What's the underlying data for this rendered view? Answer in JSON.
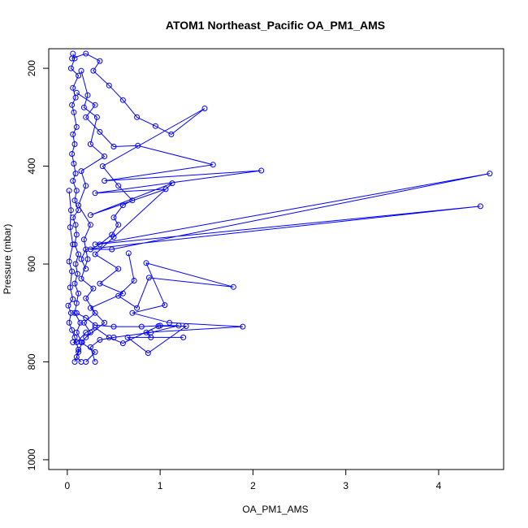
{
  "chart_data": {
    "type": "line",
    "title": "ATOM1 Northeast_Pacific OA_PM1_AMS",
    "xlabel": "OA_PM1_AMS",
    "ylabel": "Pressure (mbar)",
    "xlim": [
      -0.2,
      4.7
    ],
    "ylim": [
      1020,
      160
    ],
    "y_inverted": true,
    "x_ticks": [
      0,
      1,
      2,
      3,
      4
    ],
    "x_tick_labels": [
      "0",
      "1",
      "2",
      "3",
      "4"
    ],
    "y_ticks": [
      200,
      400,
      600,
      800,
      1000
    ],
    "y_tick_labels": [
      "200",
      "400",
      "600",
      "800",
      "1000"
    ],
    "grid": false,
    "legend": "none",
    "series_color": "#0000ff",
    "series": [
      {
        "points": [
          [
            0.06,
            170
          ],
          [
            0.08,
            180
          ],
          [
            0.04,
            200
          ],
          [
            0.12,
            215
          ],
          [
            0.06,
            240
          ],
          [
            0.09,
            260
          ],
          [
            0.05,
            275
          ],
          [
            0.07,
            290
          ],
          [
            0.1,
            320
          ],
          [
            0.06,
            335
          ],
          [
            0.08,
            355
          ],
          [
            0.05,
            375
          ],
          [
            0.07,
            395
          ],
          [
            0.09,
            415
          ],
          [
            0.06,
            430
          ],
          [
            0.1,
            450
          ],
          [
            0.08,
            470
          ],
          [
            0.12,
            490
          ],
          [
            0.06,
            505
          ],
          [
            0.09,
            520
          ],
          [
            0.1,
            540
          ],
          [
            0.08,
            560
          ],
          [
            0.12,
            580
          ],
          [
            0.09,
            600
          ],
          [
            0.11,
            620
          ],
          [
            0.08,
            640
          ],
          [
            0.12,
            660
          ],
          [
            0.1,
            680
          ],
          [
            0.08,
            700
          ],
          [
            0.14,
            720
          ],
          [
            0.1,
            740
          ],
          [
            0.16,
            760
          ],
          [
            0.12,
            780
          ],
          [
            0.08,
            800
          ]
        ]
      },
      {
        "points": [
          [
            0.05,
            180
          ],
          [
            0.2,
            170
          ],
          [
            0.35,
            185
          ],
          [
            0.28,
            205
          ],
          [
            0.45,
            235
          ],
          [
            0.6,
            265
          ],
          [
            0.75,
            300
          ],
          [
            0.95,
            318
          ],
          [
            1.12,
            335
          ],
          [
            1.48,
            282
          ],
          [
            0.38,
            400
          ],
          [
            0.55,
            440
          ],
          [
            0.7,
            470
          ],
          [
            0.6,
            480
          ],
          [
            0.5,
            505
          ],
          [
            0.55,
            520
          ],
          [
            0.48,
            540
          ],
          [
            0.35,
            560
          ],
          [
            0.25,
            570
          ],
          [
            0.48,
            570
          ],
          [
            4.55,
            415
          ],
          [
            0.3,
            560
          ],
          [
            4.45,
            482
          ],
          [
            0.2,
            570
          ],
          [
            0.15,
            590
          ],
          [
            0.2,
            610
          ]
        ]
      },
      {
        "points": [
          [
            0.1,
            250
          ],
          [
            0.3,
            275
          ],
          [
            0.2,
            300
          ],
          [
            0.35,
            330
          ],
          [
            0.5,
            360
          ],
          [
            0.76,
            358
          ],
          [
            1.57,
            397
          ],
          [
            0.4,
            430
          ],
          [
            2.09,
            409
          ],
          [
            0.3,
            455
          ],
          [
            1.06,
            447
          ],
          [
            0.25,
            500
          ],
          [
            1.13,
            435
          ],
          [
            0.5,
            545
          ],
          [
            0.3,
            580
          ],
          [
            0.55,
            610
          ],
          [
            0.35,
            640
          ],
          [
            0.6,
            660
          ],
          [
            0.25,
            690
          ],
          [
            0.4,
            720
          ],
          [
            0.2,
            750
          ]
        ]
      },
      {
        "points": [
          [
            0.15,
            205
          ],
          [
            0.22,
            255
          ],
          [
            0.18,
            280
          ],
          [
            0.32,
            300
          ],
          [
            0.25,
            355
          ],
          [
            0.4,
            380
          ],
          [
            0.15,
            410
          ],
          [
            0.2,
            440
          ],
          [
            0.12,
            480
          ],
          [
            0.25,
            520
          ],
          [
            0.18,
            550
          ],
          [
            0.22,
            590
          ],
          [
            0.15,
            630
          ],
          [
            0.28,
            650
          ],
          [
            0.2,
            670
          ],
          [
            0.3,
            700
          ],
          [
            0.18,
            720
          ],
          [
            0.25,
            740
          ],
          [
            0.15,
            760
          ],
          [
            0.3,
            780
          ],
          [
            0.2,
            800
          ]
        ]
      },
      {
        "points": [
          [
            0.66,
            578
          ],
          [
            0.72,
            634
          ],
          [
            0.55,
            665
          ],
          [
            0.75,
            690
          ],
          [
            0.88,
            628
          ],
          [
            1.79,
            647
          ],
          [
            0.85,
            598
          ],
          [
            1.05,
            684
          ],
          [
            0.7,
            700
          ],
          [
            1.1,
            720
          ],
          [
            1.89,
            728
          ],
          [
            0.85,
            740
          ],
          [
            0.9,
            750
          ],
          [
            1.25,
            750
          ],
          [
            0.65,
            750
          ],
          [
            0.87,
            782
          ],
          [
            1.28,
            727
          ],
          [
            0.98,
            727
          ],
          [
            0.6,
            762
          ],
          [
            0.45,
            750
          ],
          [
            0.3,
            730
          ],
          [
            0.2,
            740
          ],
          [
            0.1,
            760
          ],
          [
            0.06,
            760
          ]
        ]
      },
      {
        "points": [
          [
            0.02,
            450
          ],
          [
            0.04,
            490
          ],
          [
            0.03,
            525
          ],
          [
            0.06,
            560
          ],
          [
            0.02,
            595
          ],
          [
            0.05,
            615
          ],
          [
            0.03,
            648
          ],
          [
            0.06,
            672
          ],
          [
            0.01,
            685
          ],
          [
            0.04,
            700
          ],
          [
            0.02,
            720
          ],
          [
            0.05,
            735
          ],
          [
            0.08,
            750
          ],
          [
            0.12,
            775
          ],
          [
            0.1,
            790
          ],
          [
            0.15,
            800
          ]
        ]
      },
      {
        "points": [
          [
            0.1,
            700
          ],
          [
            0.2,
            710
          ],
          [
            0.3,
            725
          ],
          [
            0.5,
            728
          ],
          [
            0.8,
            728
          ],
          [
            1.0,
            726
          ],
          [
            1.2,
            726
          ],
          [
            0.9,
            740
          ],
          [
            0.5,
            750
          ],
          [
            0.35,
            755
          ],
          [
            0.25,
            770
          ],
          [
            0.3,
            800
          ]
        ]
      }
    ]
  }
}
